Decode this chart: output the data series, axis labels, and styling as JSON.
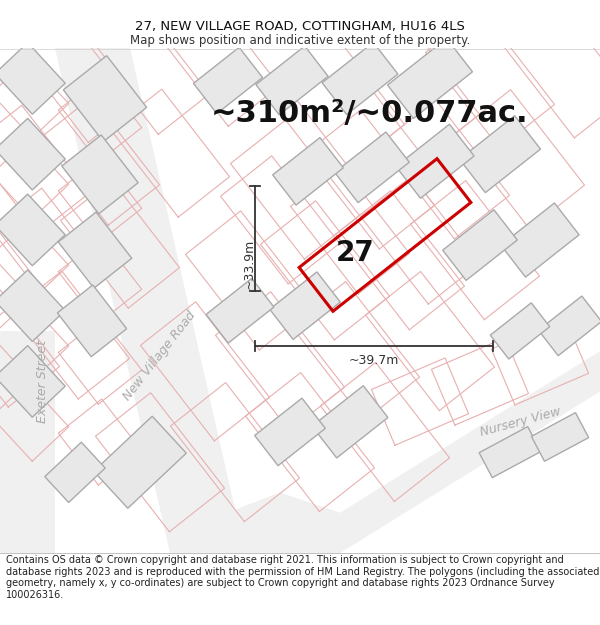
{
  "title_line1": "27, NEW VILLAGE ROAD, COTTINGHAM, HU16 4LS",
  "title_line2": "Map shows position and indicative extent of the property.",
  "area_text": "~310m²/~0.077ac.",
  "label_27": "27",
  "dim_vertical": "~33.9m",
  "dim_horizontal": "~39.7m",
  "road_label_nvr": "New Village Road",
  "road_label_ext": "Exeter Street",
  "road_label_nv": "Nursery View",
  "footer_text": "Contains OS data © Crown copyright and database right 2021. This information is subject to Crown copyright and database rights 2023 and is reproduced with the permission of HM Land Registry. The polygons (including the associated geometry, namely x, y co-ordinates) are subject to Crown copyright and database rights 2023 Ordnance Survey 100026316.",
  "map_bg": "#ffffff",
  "building_fill": "#e8e8e8",
  "building_edge": "#aaaaaa",
  "plot_edge": "#e8aaaa",
  "road_fill": "#f5f5f5",
  "property_edge": "#cc0000",
  "dim_color": "#333333",
  "road_label_color": "#aaaaaa",
  "title_fontsize": 9.5,
  "subtitle_fontsize": 8.5,
  "area_fontsize": 22,
  "label_fontsize": 20,
  "footer_fontsize": 7.0,
  "dim_fontsize": 9,
  "road_label_fontsize": 9
}
